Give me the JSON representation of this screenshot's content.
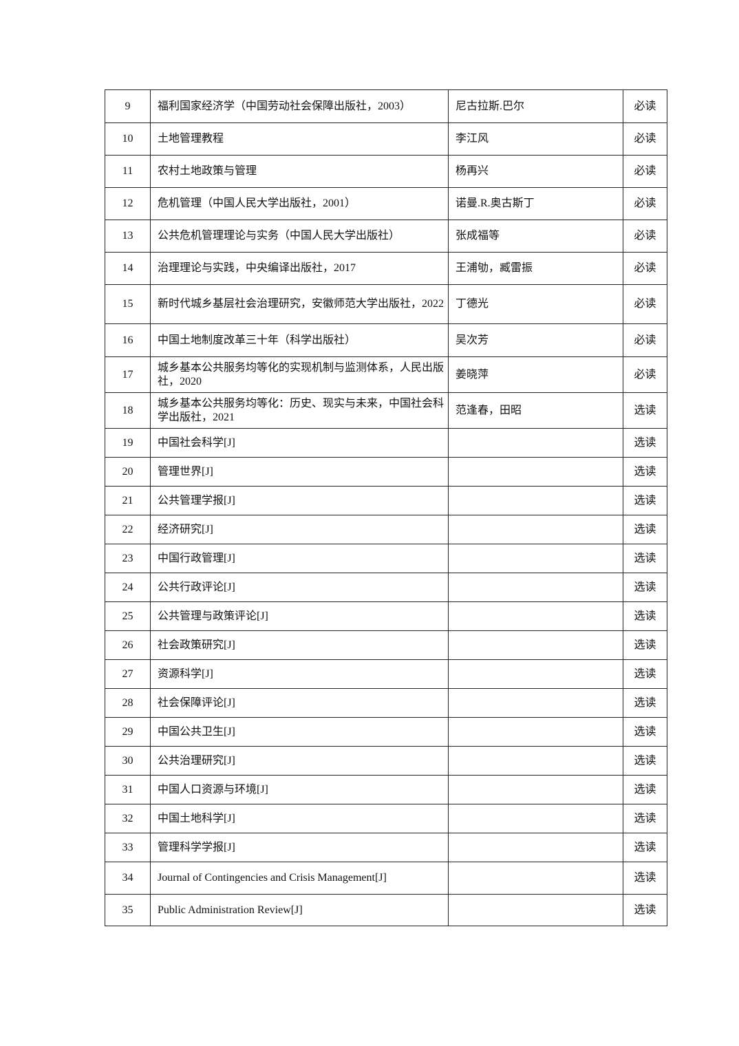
{
  "reading_list": {
    "rows": [
      {
        "no": "9",
        "title": "福利国家经济学（中国劳动社会保障出版社，2003）",
        "author": "尼古拉斯.巴尔",
        "type": "必读"
      },
      {
        "no": "10",
        "title": "土地管理教程",
        "author": "李江风",
        "type": "必读"
      },
      {
        "no": "11",
        "title": "农村土地政策与管理",
        "author": "杨再兴",
        "type": "必读"
      },
      {
        "no": "12",
        "title": "危机管理（中国人民大学出版社，2001）",
        "author": "诺曼.R.奥古斯丁",
        "type": "必读"
      },
      {
        "no": "13",
        "title": "公共危机管理理论与实务（中国人民大学出版社）",
        "author": "张成福等",
        "type": "必读"
      },
      {
        "no": "14",
        "title": "治理理论与实践，中央编译出版社，2017",
        "author": "王浦劬，臧雷振",
        "type": "必读"
      },
      {
        "no": "15",
        "title": "新时代城乡基层社会治理研究，安徽师范大学出版社，2022",
        "author": "丁德光",
        "type": "必读"
      },
      {
        "no": "16",
        "title": "中国土地制度改革三十年（科学出版社）",
        "author": "吴次芳",
        "type": "必读"
      },
      {
        "no": "17",
        "title": "城乡基本公共服务均等化的实现机制与监测体系，人民出版社，2020",
        "author": "姜晓萍",
        "type": "必读"
      },
      {
        "no": "18",
        "title": "城乡基本公共服务均等化：历史、现实与未来，中国社会科学出版社，2021",
        "author": "范逢春，田昭",
        "type": "选读"
      },
      {
        "no": "19",
        "title": "中国社会科学[J]",
        "author": "",
        "type": "选读"
      },
      {
        "no": "20",
        "title": "管理世界[J]",
        "author": "",
        "type": "选读"
      },
      {
        "no": "21",
        "title": "公共管理学报[J]",
        "author": "",
        "type": "选读"
      },
      {
        "no": "22",
        "title": "经济研究[J]",
        "author": "",
        "type": "选读"
      },
      {
        "no": "23",
        "title": "中国行政管理[J]",
        "author": "",
        "type": "选读"
      },
      {
        "no": "24",
        "title": "公共行政评论[J]",
        "author": "",
        "type": "选读"
      },
      {
        "no": "25",
        "title": "公共管理与政策评论[J]",
        "author": "",
        "type": "选读"
      },
      {
        "no": "26",
        "title": "社会政策研究[J]",
        "author": "",
        "type": "选读"
      },
      {
        "no": "27",
        "title": "资源科学[J]",
        "author": "",
        "type": "选读"
      },
      {
        "no": "28",
        "title": "社会保障评论[J]",
        "author": "",
        "type": "选读"
      },
      {
        "no": "29",
        "title": "中国公共卫生[J]",
        "author": "",
        "type": "选读"
      },
      {
        "no": "30",
        "title": "公共治理研究[J]",
        "author": "",
        "type": "选读"
      },
      {
        "no": "31",
        "title": "中国人口资源与环境[J]",
        "author": "",
        "type": "选读"
      },
      {
        "no": "32",
        "title": "中国土地科学[J]",
        "author": "",
        "type": "选读"
      },
      {
        "no": "33",
        "title": "管理科学学报[J]",
        "author": "",
        "type": "选读"
      },
      {
        "no": "34",
        "title": "Journal of Contingencies and Crisis Management[J]",
        "author": "",
        "type": "选读"
      },
      {
        "no": "35",
        "title": "Public Administration Review[J]",
        "author": "",
        "type": "选读"
      }
    ]
  }
}
